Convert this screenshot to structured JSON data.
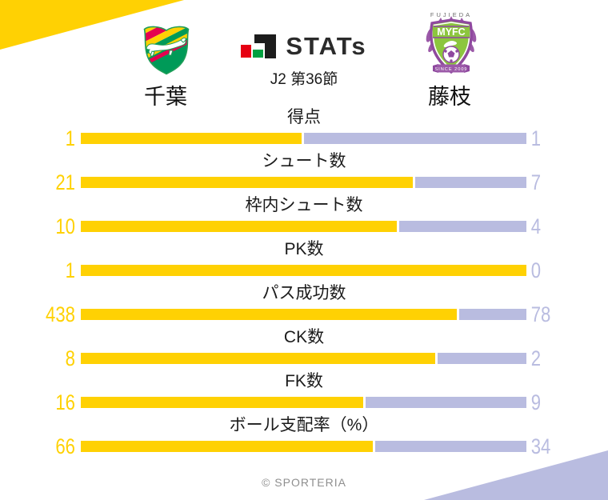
{
  "colors": {
    "home": "#ffd103",
    "away": "#b9bce0",
    "label_text": "#1b1b1b",
    "copyright_text": "#8f8f8f",
    "corner_top_left": "#ffd103",
    "corner_bottom_right": "#b9bce0"
  },
  "header": {
    "home_team": {
      "name": "千葉"
    },
    "away_team": {
      "name": "藤枝",
      "crest_top_text": "FUJIEDA",
      "crest_band_text": "MYFC",
      "crest_banner_text": "SINCE 2009"
    },
    "competition": {
      "stats_logo_text": "STATs",
      "round": "J2 第36節"
    }
  },
  "footer": {
    "copyright": "© SPORTERIA"
  },
  "chart_data": {
    "type": "bar",
    "title": "J STATs J2 第36節 千葉 vs 藤枝",
    "legend_position": "none",
    "orientation": "horizontal-paired",
    "series": [
      {
        "name": "千葉",
        "color": "#ffd103",
        "values": [
          1,
          21,
          10,
          1,
          438,
          8,
          16,
          66
        ]
      },
      {
        "name": "藤枝",
        "color": "#b9bce0",
        "values": [
          1,
          7,
          4,
          0,
          78,
          2,
          9,
          34
        ]
      }
    ],
    "rows": [
      {
        "label": "得点",
        "home": 1,
        "away": 1
      },
      {
        "label": "シュート数",
        "home": 21,
        "away": 7
      },
      {
        "label": "枠内シュート数",
        "home": 10,
        "away": 4
      },
      {
        "label": "PK数",
        "home": 1,
        "away": 0
      },
      {
        "label": "パス成功数",
        "home": 438,
        "away": 78
      },
      {
        "label": "CK数",
        "home": 8,
        "away": 2
      },
      {
        "label": "FK数",
        "home": 16,
        "away": 9
      },
      {
        "label": "ボール支配率（%）",
        "home": 66,
        "away": 34
      }
    ]
  }
}
